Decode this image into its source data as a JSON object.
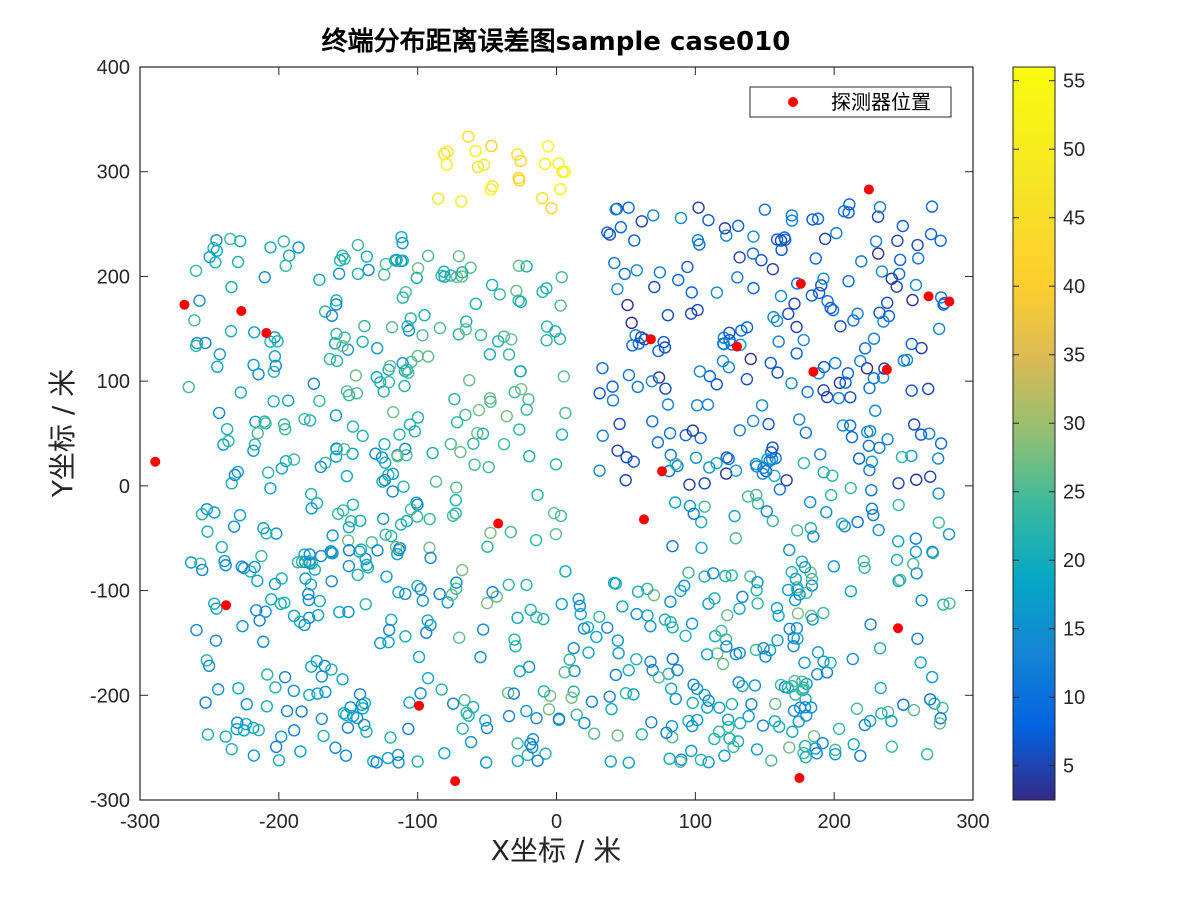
{
  "chart_data": {
    "type": "scatter",
    "title": "终端分布距离误差图sample case010",
    "xlabel": "X坐标 / 米",
    "ylabel": "Y坐标 / 米",
    "xlim": [
      -300,
      300
    ],
    "ylim": [
      -300,
      400
    ],
    "xticks": [
      -300,
      -200,
      -100,
      0,
      100,
      200,
      300
    ],
    "yticks": [
      -300,
      -200,
      -100,
      0,
      100,
      200,
      300,
      400
    ],
    "grid": false,
    "legend": {
      "position": "top-right",
      "entries": [
        "探测器位置"
      ]
    },
    "colorbar": {
      "min": 2.5,
      "max": 56,
      "ticks": [
        5,
        10,
        15,
        20,
        25,
        30,
        35,
        40,
        45,
        50,
        55
      ],
      "colormap": "parula"
    },
    "detectors": [
      [
        -268,
        173
      ],
      [
        -227,
        167
      ],
      [
        -209,
        146
      ],
      [
        -289,
        23
      ],
      [
        -238,
        -114
      ],
      [
        -99,
        -210
      ],
      [
        -73,
        -282
      ],
      [
        -42,
        -36
      ],
      [
        63,
        -32
      ],
      [
        68,
        140
      ],
      [
        76,
        14
      ],
      [
        130,
        133
      ],
      [
        176,
        193
      ],
      [
        185,
        109
      ],
      [
        225,
        283
      ],
      [
        238,
        111
      ],
      [
        268,
        181
      ],
      [
        283,
        176
      ],
      [
        246,
        -136
      ],
      [
        175,
        -279
      ]
    ],
    "terminal_clusters": [
      {
        "region": "top-center",
        "x_range": [
          -90,
          10
        ],
        "y_range": [
          265,
          335
        ],
        "error_range": [
          40,
          56
        ],
        "count": 24
      },
      {
        "region": "upper-right",
        "x_range": [
          30,
          280
        ],
        "y_range": [
          0,
          270
        ],
        "error_range": [
          3,
          15
        ],
        "count": 220
      },
      {
        "region": "left",
        "x_range": [
          -265,
          -100
        ],
        "y_range": [
          -80,
          240
        ],
        "error_range": [
          13,
          25
        ],
        "count": 150
      },
      {
        "region": "center-left",
        "x_range": [
          -160,
          10
        ],
        "y_range": [
          -60,
          220
        ],
        "error_range": [
          20,
          28
        ],
        "count": 130
      },
      {
        "region": "bottom-left",
        "x_range": [
          -260,
          -80
        ],
        "y_range": [
          -265,
          -60
        ],
        "error_range": [
          12,
          22
        ],
        "count": 130
      },
      {
        "region": "bottom-center",
        "x_range": [
          -80,
          190
        ],
        "y_range": [
          -265,
          -80
        ],
        "error_range": [
          12,
          28
        ],
        "count": 170
      },
      {
        "region": "right-lower",
        "x_range": [
          80,
          285
        ],
        "y_range": [
          -265,
          30
        ],
        "error_range": [
          10,
          26
        ],
        "count": 160
      }
    ]
  }
}
